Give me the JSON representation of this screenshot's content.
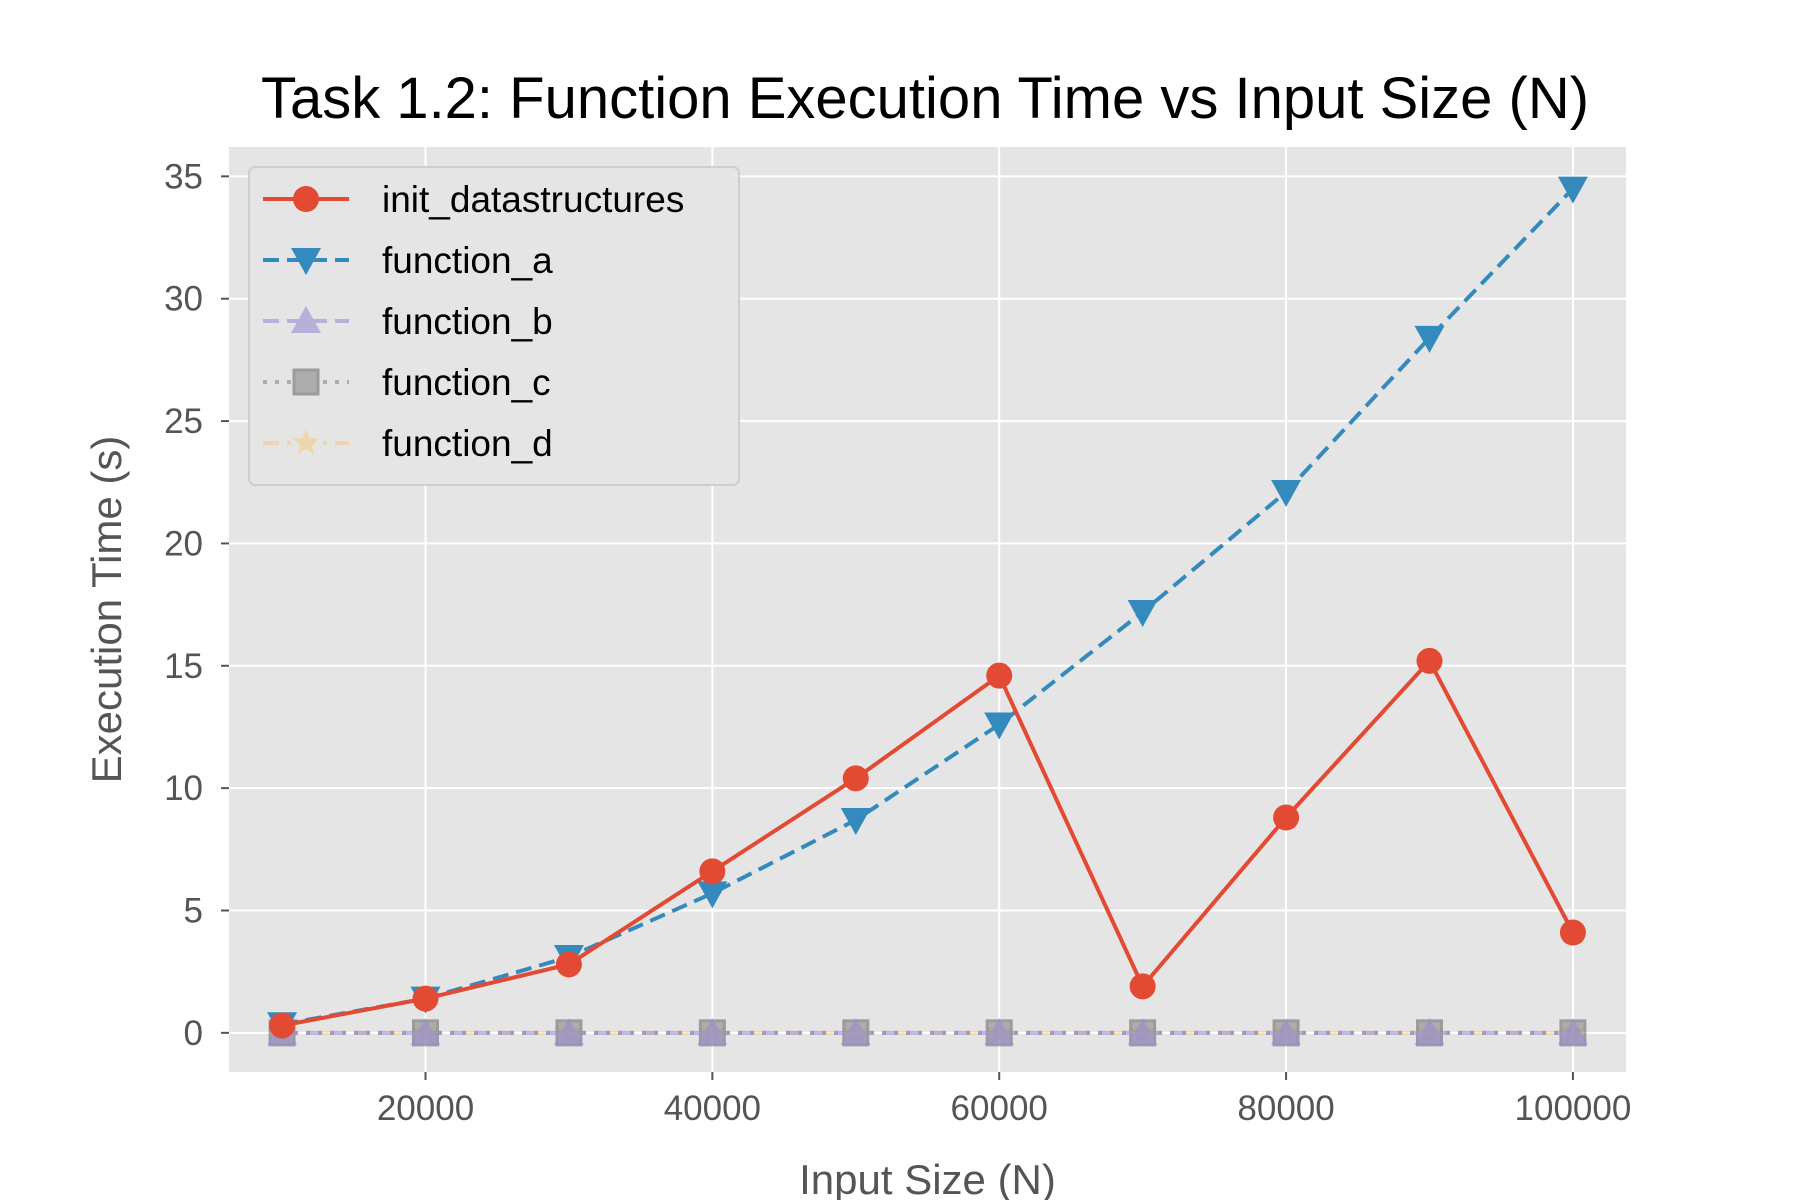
{
  "chart_data": {
    "type": "line",
    "title": "Task 1.2: Function Execution Time vs Input Size (N)",
    "xlabel": "Input Size (N)",
    "ylabel": "Execution Time (s)",
    "x": [
      10000,
      20000,
      30000,
      40000,
      50000,
      60000,
      70000,
      80000,
      90000,
      100000
    ],
    "xlim": [
      6300,
      103700
    ],
    "ylim": [
      -1.6,
      36.2
    ],
    "x_ticks": [
      20000,
      40000,
      60000,
      80000,
      100000
    ],
    "y_ticks": [
      0,
      5,
      10,
      15,
      20,
      25,
      30,
      35
    ],
    "grid": true,
    "legend_position": "upper-left",
    "series": [
      {
        "name": "init_datastructures",
        "color": "#E24A33",
        "marker": "circle",
        "linestyle": "solid",
        "opacity": 1,
        "values": [
          0.3,
          1.4,
          2.8,
          6.6,
          10.4,
          14.6,
          1.9,
          8.8,
          15.2,
          4.1
        ]
      },
      {
        "name": "function_a",
        "color": "#348ABD",
        "marker": "triangle-down",
        "linestyle": "dashed",
        "opacity": 1,
        "values": [
          0.35,
          1.4,
          3.1,
          5.7,
          8.7,
          12.6,
          17.2,
          22.1,
          28.4,
          34.5
        ]
      },
      {
        "name": "function_b",
        "color": "#988ED5",
        "marker": "triangle-up",
        "linestyle": "dashed",
        "opacity": 0.6,
        "values": [
          0,
          0,
          0,
          0,
          0,
          0,
          0,
          0,
          0,
          0
        ]
      },
      {
        "name": "function_c",
        "color": "#777777",
        "marker": "square",
        "linestyle": "dotted",
        "opacity": 0.5,
        "values": [
          0,
          0,
          0,
          0,
          0,
          0,
          0,
          0,
          0,
          0
        ]
      },
      {
        "name": "function_d",
        "color": "#FBC15E",
        "marker": "star",
        "linestyle": "dashdot",
        "opacity": 0.4,
        "values": [
          0,
          0,
          0,
          0,
          0,
          0,
          0,
          0,
          0,
          0
        ]
      }
    ]
  }
}
